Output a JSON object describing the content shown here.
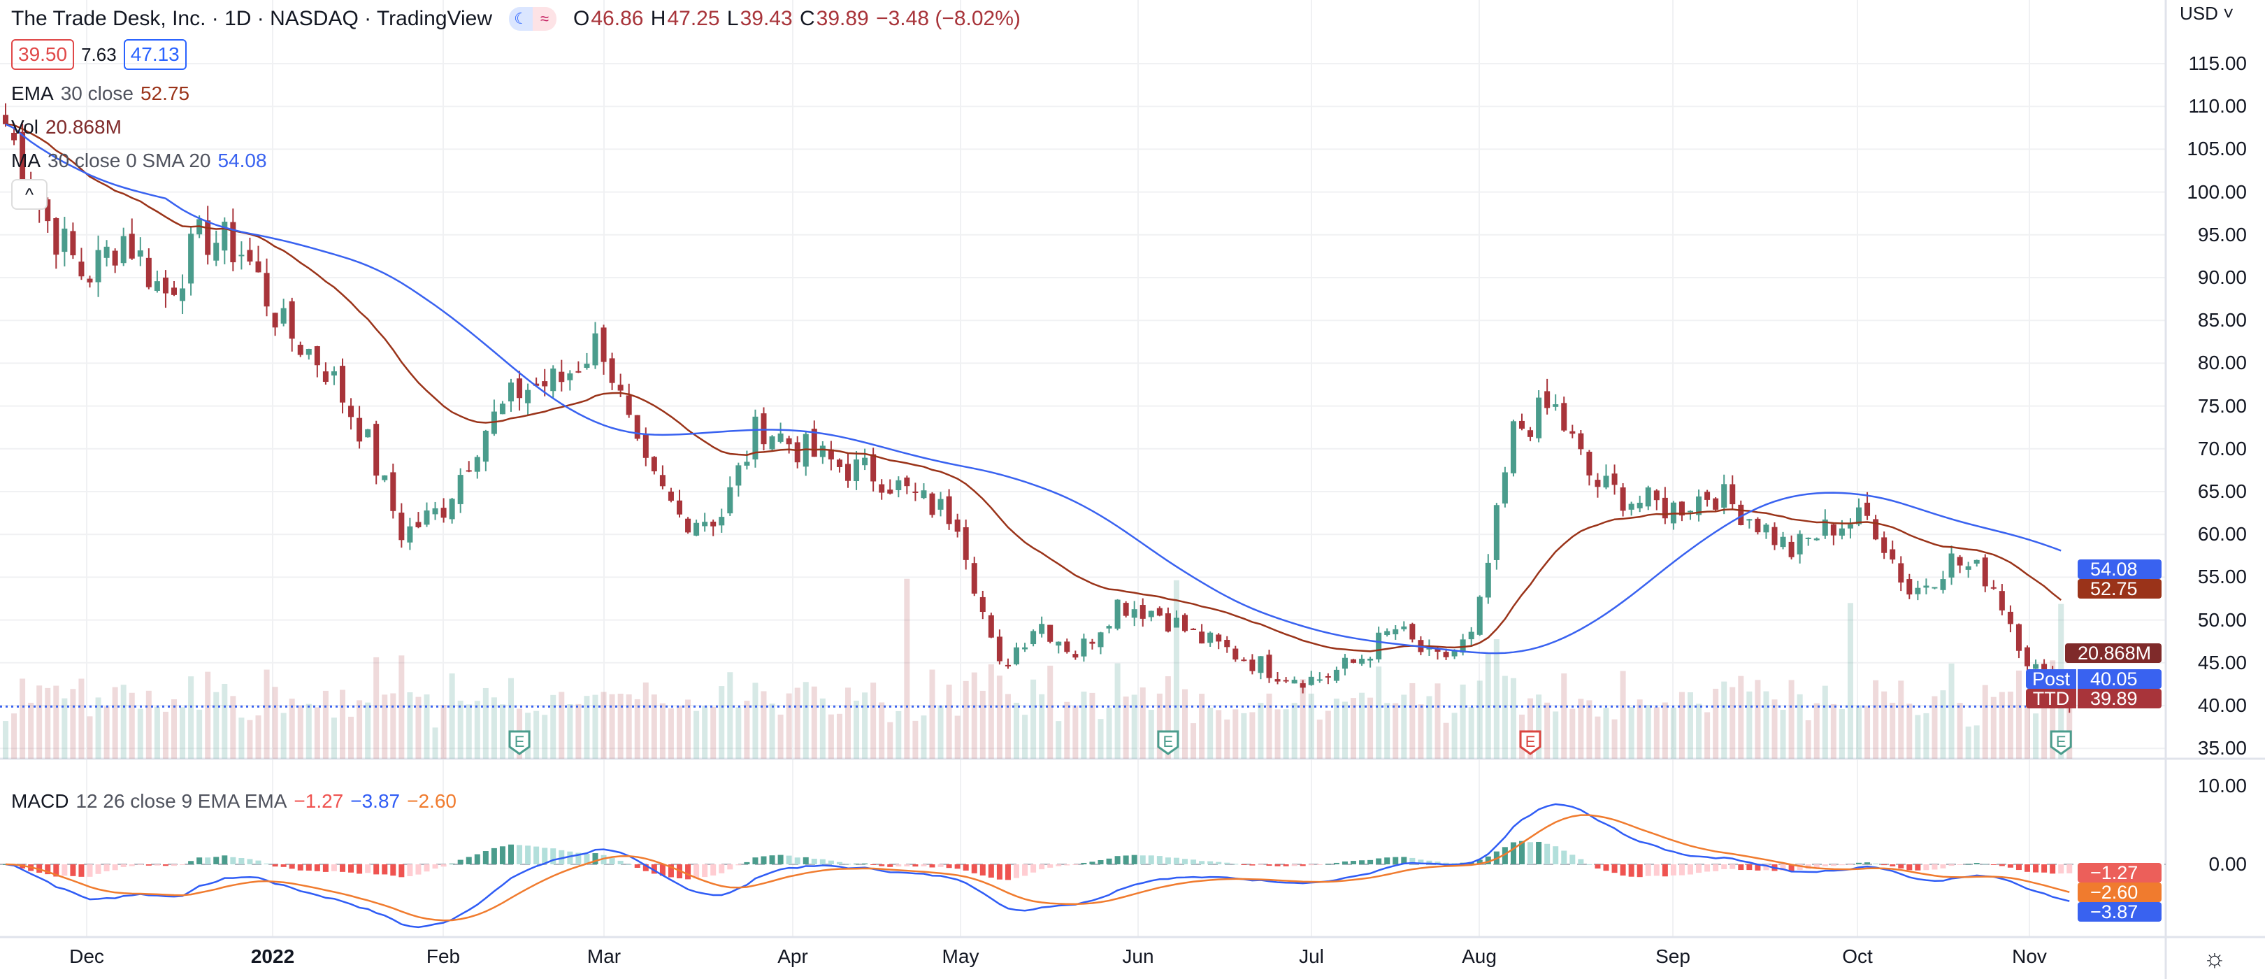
{
  "header": {
    "title": "The Trade Desk, Inc. · 1D · NASDAQ · TradingView",
    "ohlc": {
      "o_label": "O",
      "o": "46.86",
      "h_label": "H",
      "h": "47.25",
      "l_label": "L",
      "l": "39.43",
      "c_label": "C",
      "c": "39.89",
      "change": "−3.48 (−8.02%)"
    },
    "bid": "39.50",
    "spread": "7.63",
    "ask": "47.13"
  },
  "indicators": {
    "ema": {
      "name": "EMA",
      "params": "30 close",
      "value": "52.75"
    },
    "vol": {
      "name": "Vol",
      "value": "20.868M"
    },
    "ma": {
      "name": "MA",
      "params": "30 close 0 SMA 20",
      "value": "54.08"
    },
    "macd": {
      "name": "MACD",
      "params": "12 26 close 9 EMA EMA",
      "hist": "−1.27",
      "macd": "−3.87",
      "signal": "−2.60"
    },
    "collapse_label": "^"
  },
  "price_axis": {
    "currency": "USD",
    "labels": [
      "115.00",
      "110.00",
      "105.00",
      "100.00",
      "95.00",
      "90.00",
      "85.00",
      "80.00",
      "75.00",
      "70.00",
      "65.00",
      "60.00",
      "55.00",
      "50.00",
      "45.00",
      "40.00",
      "35.00"
    ],
    "badges": {
      "ma": "54.08",
      "ema": "52.75",
      "vol": "20.868M",
      "post_label": "Post",
      "post": "40.05",
      "ticker": "TTD",
      "last": "39.89"
    }
  },
  "macd_axis": {
    "labels": [
      "10.00",
      "0.00"
    ],
    "badges": {
      "hist": "−1.27",
      "signal": "−2.60",
      "macd": "−3.87"
    }
  },
  "time_axis": [
    "Dec",
    "2022",
    "Feb",
    "Mar",
    "Apr",
    "May",
    "Jun",
    "Jul",
    "Aug",
    "Sep",
    "Oct",
    "Nov"
  ],
  "earnings_marker": "E",
  "colors": {
    "up": "#4a9c8c",
    "down": "#a8343a",
    "ema": "#9a3319",
    "ma": "#3962f0",
    "macd": "#2f5cf5",
    "signal": "#f07b2e"
  },
  "chart_data": {
    "type": "candlestick",
    "title": "The Trade Desk, Inc. 1D",
    "ylim": [
      35,
      122
    ],
    "weekly_closes": [
      108,
      97,
      90,
      95,
      88,
      95,
      93,
      84,
      80,
      72,
      60,
      63,
      72,
      77,
      78,
      83,
      68,
      62,
      62,
      73,
      70,
      68,
      67,
      64,
      62,
      44,
      50,
      46,
      52,
      51,
      48,
      46,
      44,
      43,
      45,
      49,
      45,
      48,
      72,
      75,
      66,
      64,
      63,
      65,
      62,
      58,
      61,
      62,
      53,
      57,
      55,
      45,
      39.89
    ],
    "last_close": 39.89
  }
}
